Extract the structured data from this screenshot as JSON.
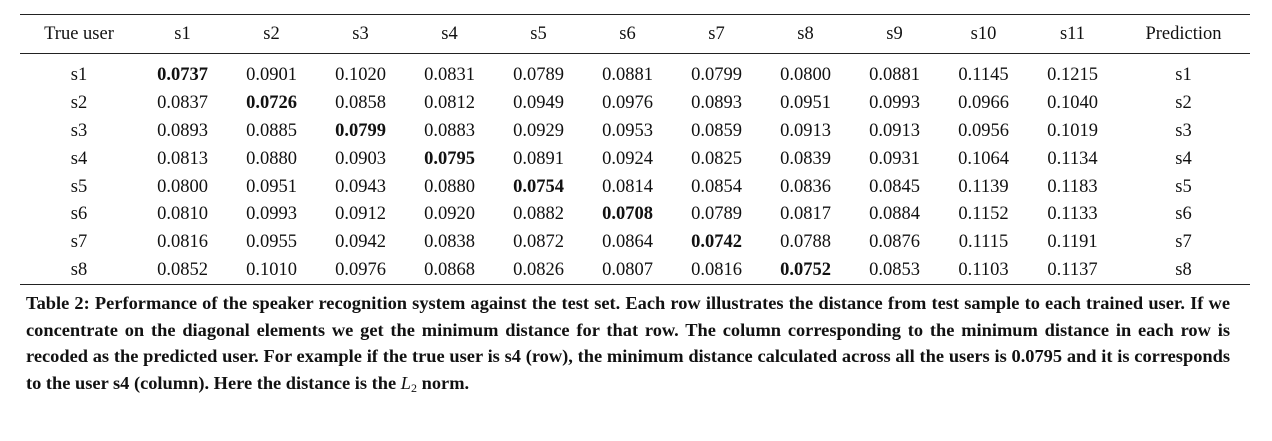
{
  "table": {
    "headers": [
      "True user",
      "s1",
      "s2",
      "s3",
      "s4",
      "s5",
      "s6",
      "s7",
      "s8",
      "s9",
      "s10",
      "s11",
      "Prediction"
    ],
    "rows": [
      {
        "true_user": "s1",
        "values": [
          "0.0737",
          "0.0901",
          "0.1020",
          "0.0831",
          "0.0789",
          "0.0881",
          "0.0799",
          "0.0800",
          "0.0881",
          "0.1145",
          "0.1215"
        ],
        "min_index": 0,
        "prediction": "s1"
      },
      {
        "true_user": "s2",
        "values": [
          "0.0837",
          "0.0726",
          "0.0858",
          "0.0812",
          "0.0949",
          "0.0976",
          "0.0893",
          "0.0951",
          "0.0993",
          "0.0966",
          "0.1040"
        ],
        "min_index": 1,
        "prediction": "s2"
      },
      {
        "true_user": "s3",
        "values": [
          "0.0893",
          "0.0885",
          "0.0799",
          "0.0883",
          "0.0929",
          "0.0953",
          "0.0859",
          "0.0913",
          "0.0913",
          "0.0956",
          "0.1019"
        ],
        "min_index": 2,
        "prediction": "s3"
      },
      {
        "true_user": "s4",
        "values": [
          "0.0813",
          "0.0880",
          "0.0903",
          "0.0795",
          "0.0891",
          "0.0924",
          "0.0825",
          "0.0839",
          "0.0931",
          "0.1064",
          "0.1134"
        ],
        "min_index": 3,
        "prediction": "s4"
      },
      {
        "true_user": "s5",
        "values": [
          "0.0800",
          "0.0951",
          "0.0943",
          "0.0880",
          "0.0754",
          "0.0814",
          "0.0854",
          "0.0836",
          "0.0845",
          "0.1139",
          "0.1183"
        ],
        "min_index": 4,
        "prediction": "s5"
      },
      {
        "true_user": "s6",
        "values": [
          "0.0810",
          "0.0993",
          "0.0912",
          "0.0920",
          "0.0882",
          "0.0708",
          "0.0789",
          "0.0817",
          "0.0884",
          "0.1152",
          "0.1133"
        ],
        "min_index": 5,
        "prediction": "s6"
      },
      {
        "true_user": "s7",
        "values": [
          "0.0816",
          "0.0955",
          "0.0942",
          "0.0838",
          "0.0872",
          "0.0864",
          "0.0742",
          "0.0788",
          "0.0876",
          "0.1115",
          "0.1191"
        ],
        "min_index": 6,
        "prediction": "s7"
      },
      {
        "true_user": "s8",
        "values": [
          "0.0852",
          "0.1010",
          "0.0976",
          "0.0868",
          "0.0826",
          "0.0807",
          "0.0816",
          "0.0752",
          "0.0853",
          "0.1103",
          "0.1137"
        ],
        "min_index": 7,
        "prediction": "s8"
      }
    ]
  },
  "caption": {
    "text": "Table 2: Performance of the speaker recognition system against the test set. Each row illustrates the distance from test sample to each trained user. If we concentrate on the diagonal elements we get the minimum distance for that row. The column corresponding to the minimum distance in each row is recoded as the predicted user. For example if the true user is s4 (row), the minimum distance calculated across all the users is 0.0795 and it is corresponds to the user s4 (column). Here the distance is the",
    "norm_symbol": "L",
    "norm_subscript": "2",
    "text_end": "norm."
  }
}
